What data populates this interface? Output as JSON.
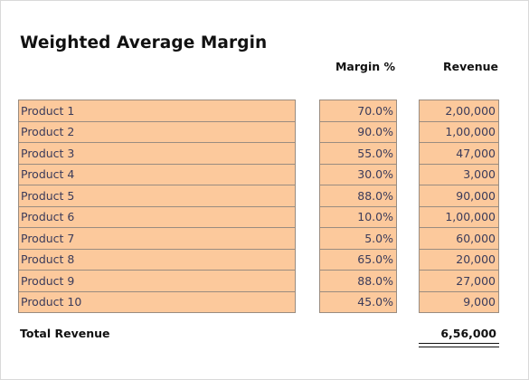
{
  "sheet": {
    "title": "Weighted Average Margin",
    "headers": {
      "margin": "Margin %",
      "revenue": "Revenue"
    },
    "rows": [
      {
        "product": "Product 1",
        "margin": "70.0%",
        "revenue": "2,00,000"
      },
      {
        "product": "Product 2",
        "margin": "90.0%",
        "revenue": "1,00,000"
      },
      {
        "product": "Product 3",
        "margin": "55.0%",
        "revenue": "47,000"
      },
      {
        "product": "Product 4",
        "margin": "30.0%",
        "revenue": "3,000"
      },
      {
        "product": "Product 5",
        "margin": "88.0%",
        "revenue": "90,000"
      },
      {
        "product": "Product 6",
        "margin": "10.0%",
        "revenue": "1,00,000"
      },
      {
        "product": "Product 7",
        "margin": "5.0%",
        "revenue": "60,000"
      },
      {
        "product": "Product 8",
        "margin": "65.0%",
        "revenue": "20,000"
      },
      {
        "product": "Product 9",
        "margin": "88.0%",
        "revenue": "27,000"
      },
      {
        "product": "Product 10",
        "margin": "45.0%",
        "revenue": "9,000"
      }
    ],
    "total": {
      "label": "Total Revenue",
      "value": "6,56,000"
    }
  },
  "colors": {
    "cell_fill": "#fcc99c",
    "cell_border": "#9a8c80",
    "cell_text": "#3b3b5a"
  }
}
